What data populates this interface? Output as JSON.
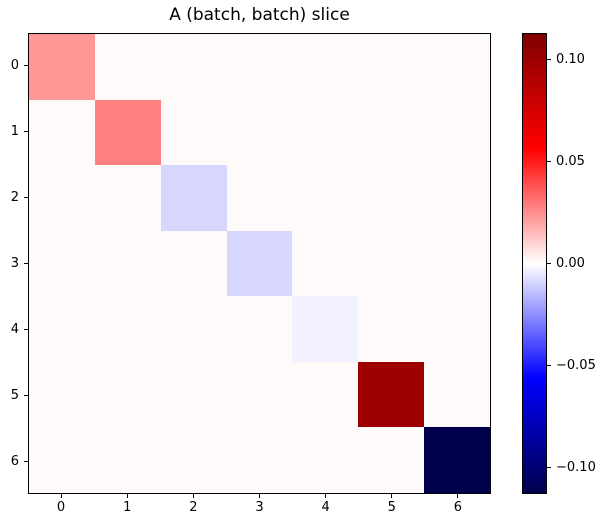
{
  "chart_data": {
    "type": "heatmap",
    "title": "A (batch, batch) slice",
    "rows": 7,
    "cols": 7,
    "x_tick_labels": [
      "0",
      "1",
      "2",
      "3",
      "4",
      "5",
      "6"
    ],
    "y_tick_labels": [
      "0",
      "1",
      "2",
      "3",
      "4",
      "5",
      "6"
    ],
    "matrix": [
      [
        0.023,
        0.001,
        0.001,
        0.001,
        0.001,
        0.001,
        0.001
      ],
      [
        0.001,
        0.028,
        0.001,
        0.001,
        0.001,
        0.001,
        0.001
      ],
      [
        0.001,
        0.001,
        -0.0091,
        0.001,
        0.001,
        0.001,
        0.001
      ],
      [
        0.001,
        0.001,
        0.001,
        -0.0086,
        0.001,
        0.001,
        0.001
      ],
      [
        0.001,
        0.001,
        0.001,
        0.001,
        -0.003,
        0.001,
        0.001
      ],
      [
        0.001,
        0.001,
        0.001,
        0.001,
        0.001,
        0.0995,
        0.001
      ],
      [
        0.001,
        0.001,
        0.001,
        0.001,
        0.001,
        0.001,
        -0.113
      ]
    ],
    "diagonal_values": [
      0.023,
      0.028,
      -0.0091,
      -0.0086,
      -0.003,
      0.0995,
      -0.113
    ],
    "vmin": -0.113,
    "vmax": 0.113,
    "colormap": {
      "name": "seismic",
      "stops": [
        {
          "pos": 0.0,
          "color": "#00004c"
        },
        {
          "pos": 0.25,
          "color": "#0000ff"
        },
        {
          "pos": 0.5,
          "color": "#ffffff"
        },
        {
          "pos": 0.75,
          "color": "#ff0000"
        },
        {
          "pos": 1.0,
          "color": "#7f0000"
        }
      ]
    },
    "colorbar": {
      "tick_labels": [
        "0.10",
        "0.05",
        "0.00",
        "−0.05",
        "−0.10"
      ],
      "tick_values": [
        0.1,
        0.05,
        0.0,
        -0.05,
        -0.1
      ]
    },
    "layout": {
      "grid": "off",
      "legend": "none",
      "colorbar_position": "right",
      "text_color": "#000000",
      "background_color": "#ffffff"
    }
  }
}
